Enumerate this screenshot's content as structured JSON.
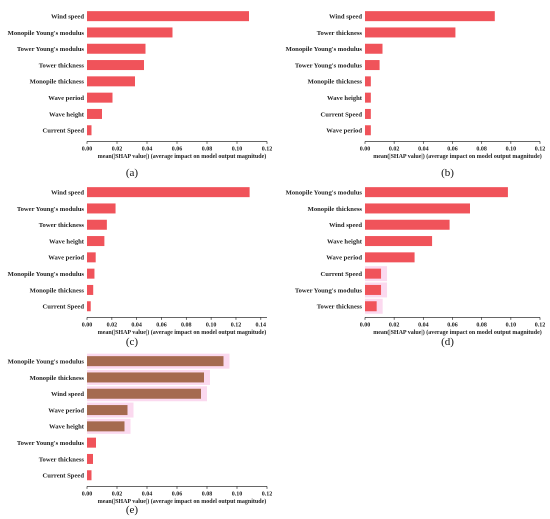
{
  "bar_color": "#f0535a",
  "chart_data": [
    {
      "type": "bar",
      "orientation": "horizontal",
      "panel": "(a)",
      "categories": [
        "Wind speed",
        "Monopile Young's modulus",
        "Tower Young's modulus",
        "Tower thickness",
        "Monopile thickness",
        "Wave period",
        "Wave height",
        "Current Speed"
      ],
      "values": [
        0.108,
        0.057,
        0.039,
        0.038,
        0.032,
        0.017,
        0.01,
        0.003
      ],
      "xlabel": "mean(|SHAP value|) (average impact on model output magnitude)",
      "xticks": [
        "0.00",
        "0.02",
        "0.04",
        "0.06",
        "0.08",
        "0.10",
        "0.12"
      ],
      "xlim": [
        0,
        0.12
      ],
      "highlight": []
    },
    {
      "type": "bar",
      "orientation": "horizontal",
      "panel": "(b)",
      "categories": [
        "Wind speed",
        "Tower thickness",
        "Monopile Young's modulus",
        "Tower Young's modulus",
        "Monopile thickness",
        "Wave height",
        "Current Speed",
        "Wave period"
      ],
      "values": [
        0.089,
        0.062,
        0.012,
        0.01,
        0.004,
        0.004,
        0.004,
        0.004
      ],
      "xlabel": "mean(|SHAP value|) (average impact on model output magnitude)",
      "xticks": [
        "0.00",
        "0.02",
        "0.04",
        "0.06",
        "0.08",
        "0.10",
        "0.12"
      ],
      "xlim": [
        0,
        0.12
      ],
      "highlight": []
    },
    {
      "type": "bar",
      "orientation": "horizontal",
      "panel": "(c)",
      "categories": [
        "Wind speed",
        "Tower Young's modulus",
        "Tower thickness",
        "Wave height",
        "Wave period",
        "Monopile Young's modulus",
        "Monopile thickness",
        "Current Speed"
      ],
      "values": [
        0.131,
        0.023,
        0.016,
        0.014,
        0.007,
        0.006,
        0.005,
        0.003
      ],
      "xlabel": "mean(|SHAP value|) (average impact on model output magnitude)",
      "xticks": [
        "0.00",
        "0.02",
        "0.04",
        "0.06",
        "0.08",
        "0.10",
        "0.12",
        "0.14"
      ],
      "xlim": [
        0,
        0.145
      ],
      "highlight": []
    },
    {
      "type": "bar",
      "orientation": "horizontal",
      "panel": "(d)",
      "categories": [
        "Monopile Young's modulus",
        "Monopile thickness",
        "Wind speed",
        "Wave height",
        "Wave period",
        "Current Speed",
        "Tower Young's modulus",
        "Tower thickness"
      ],
      "values": [
        0.098,
        0.072,
        0.058,
        0.046,
        0.034,
        0.011,
        0.011,
        0.008
      ],
      "xlabel": "mean(|SHAP value|) (average impact on model output magnitude)",
      "xticks": [
        "0.00",
        "0.02",
        "0.04",
        "0.06",
        "0.08",
        "0.10",
        "0.12"
      ],
      "xlim": [
        0,
        0.12
      ],
      "highlight": [
        5,
        6,
        7
      ]
    },
    {
      "type": "bar",
      "orientation": "horizontal",
      "panel": "(e)",
      "categories": [
        "Monopile Young's modulus",
        "Monopile thickness",
        "Wind speed",
        "Wave period",
        "Wave height",
        "Tower Young's modulus",
        "Tower thickness",
        "Current Speed"
      ],
      "values": [
        0.091,
        0.078,
        0.076,
        0.027,
        0.025,
        0.006,
        0.004,
        0.003
      ],
      "xlabel": "mean(|SHAP value|) (average impact on model output magnitude)",
      "xticks": [
        "0.00",
        "0.02",
        "0.04",
        "0.06",
        "0.08",
        "0.10",
        "0.12"
      ],
      "xlim": [
        0,
        0.12
      ],
      "highlight": [
        0,
        1,
        2,
        3,
        4
      ],
      "overlay_color": "#a56a4f"
    }
  ]
}
